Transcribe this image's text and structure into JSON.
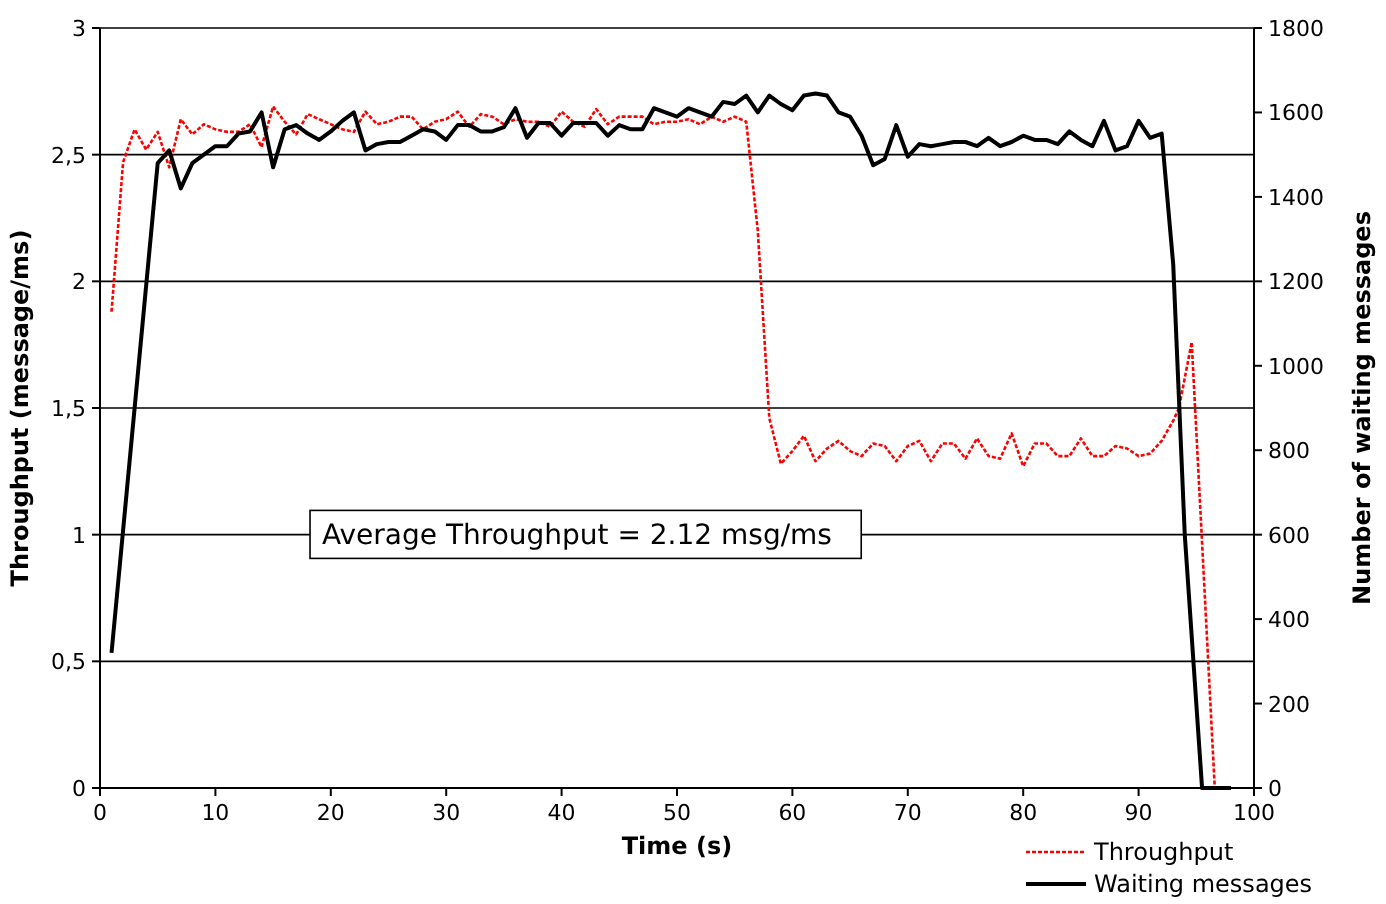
{
  "chart_data": {
    "type": "line",
    "xlabel": "Time (s)",
    "ylabel": "Throughput (message/ms)",
    "y2label": "Number of waiting messages",
    "xlim": [
      0,
      100
    ],
    "xticks": [
      0,
      10,
      20,
      30,
      40,
      50,
      60,
      70,
      80,
      90,
      100
    ],
    "ylim": [
      0,
      3
    ],
    "yticks": [
      0,
      {
        "value": 0.5,
        "label": "0,5"
      },
      1,
      {
        "value": 1.5,
        "label": "1,5"
      },
      2,
      {
        "value": 2.5,
        "label": "2,5"
      },
      3
    ],
    "y2lim": [
      0,
      1800
    ],
    "y2ticks": [
      0,
      200,
      400,
      600,
      800,
      1000,
      1200,
      1400,
      1600,
      1800
    ],
    "grid": "y",
    "legend": "bottom right",
    "annotations": [
      "Average Throughput = 2.12 msg/ms"
    ],
    "series": [
      {
        "name": "Throughput",
        "color": "#ff0000",
        "line_style": "dashed",
        "x": [
          1,
          2,
          3,
          4,
          5,
          6,
          7,
          8,
          9,
          10,
          11,
          12,
          13,
          14,
          15,
          16,
          17,
          18,
          19,
          20,
          21,
          22,
          23,
          24,
          25,
          26,
          27,
          28,
          29,
          30,
          31,
          32,
          33,
          34,
          35,
          36,
          37,
          38,
          39,
          40,
          41,
          42,
          43,
          44,
          45,
          46,
          47,
          48,
          49,
          50,
          51,
          52,
          53,
          54,
          55,
          56,
          57,
          58,
          59,
          60,
          61,
          62,
          63,
          64,
          65,
          66,
          67,
          68,
          69,
          70,
          71,
          72,
          73,
          74,
          75,
          76,
          77,
          78,
          79,
          80,
          81,
          82,
          83,
          84,
          85,
          86,
          87,
          88,
          89,
          90,
          91,
          92,
          93,
          93.5,
          94.6,
          96.6
        ],
        "values": [
          1.88,
          2.47,
          2.6,
          2.52,
          2.59,
          2.45,
          2.64,
          2.58,
          2.62,
          2.6,
          2.59,
          2.59,
          2.62,
          2.53,
          2.69,
          2.63,
          2.58,
          2.66,
          2.64,
          2.62,
          2.6,
          2.59,
          2.67,
          2.62,
          2.63,
          2.65,
          2.65,
          2.6,
          2.63,
          2.64,
          2.67,
          2.61,
          2.66,
          2.65,
          2.62,
          2.64,
          2.63,
          2.63,
          2.61,
          2.67,
          2.63,
          2.61,
          2.68,
          2.62,
          2.65,
          2.65,
          2.65,
          2.62,
          2.63,
          2.63,
          2.64,
          2.62,
          2.65,
          2.63,
          2.65,
          2.63,
          2.2,
          1.46,
          1.28,
          1.33,
          1.39,
          1.29,
          1.34,
          1.37,
          1.33,
          1.31,
          1.36,
          1.35,
          1.29,
          1.35,
          1.37,
          1.29,
          1.36,
          1.36,
          1.3,
          1.38,
          1.31,
          1.3,
          1.4,
          1.27,
          1.36,
          1.36,
          1.31,
          1.31,
          1.38,
          1.31,
          1.31,
          1.35,
          1.34,
          1.31,
          1.32,
          1.37,
          1.45,
          1.5,
          1.76,
          0
        ]
      },
      {
        "name": "Waiting messages",
        "color": "#000000",
        "line_style": "solid",
        "axis": "y2",
        "x": [
          1,
          5,
          6,
          7,
          8,
          9,
          10,
          11,
          12,
          13,
          14,
          15,
          16,
          17,
          18,
          19,
          20,
          21,
          22,
          23,
          24,
          25,
          26,
          27,
          28,
          29,
          30,
          31,
          32,
          33,
          34,
          35,
          36,
          37,
          38,
          39,
          40,
          41,
          42,
          43,
          44,
          45,
          46,
          47,
          48,
          49,
          50,
          51,
          52,
          53,
          54,
          55,
          56,
          57,
          58,
          59,
          60,
          61,
          62,
          63,
          64,
          65,
          66,
          67,
          68,
          69,
          70,
          71,
          72,
          73,
          74,
          75,
          76,
          77,
          78,
          79,
          80,
          81,
          82,
          83,
          84,
          85,
          86,
          87,
          88,
          89,
          90,
          91,
          92,
          93,
          94,
          95.5,
          98
        ],
        "values": [
          320,
          1480,
          1510,
          1420,
          1480,
          1500,
          1520,
          1520,
          1550,
          1555,
          1600,
          1470,
          1560,
          1570,
          1550,
          1535,
          1555,
          1580,
          1600,
          1510,
          1525,
          1530,
          1530,
          1545,
          1560,
          1555,
          1535,
          1570,
          1570,
          1555,
          1555,
          1565,
          1610,
          1540,
          1575,
          1575,
          1545,
          1575,
          1575,
          1575,
          1545,
          1570,
          1560,
          1560,
          1610,
          1600,
          1590,
          1610,
          1600,
          1590,
          1625,
          1620,
          1640,
          1600,
          1640,
          1620,
          1605,
          1640,
          1645,
          1640,
          1600,
          1590,
          1545,
          1475,
          1490,
          1570,
          1495,
          1525,
          1520,
          1525,
          1530,
          1530,
          1520,
          1540,
          1520,
          1530,
          1545,
          1535,
          1535,
          1525,
          1555,
          1535,
          1520,
          1580,
          1510,
          1520,
          1580,
          1540,
          1550,
          1240,
          600,
          0,
          0
        ]
      }
    ]
  }
}
